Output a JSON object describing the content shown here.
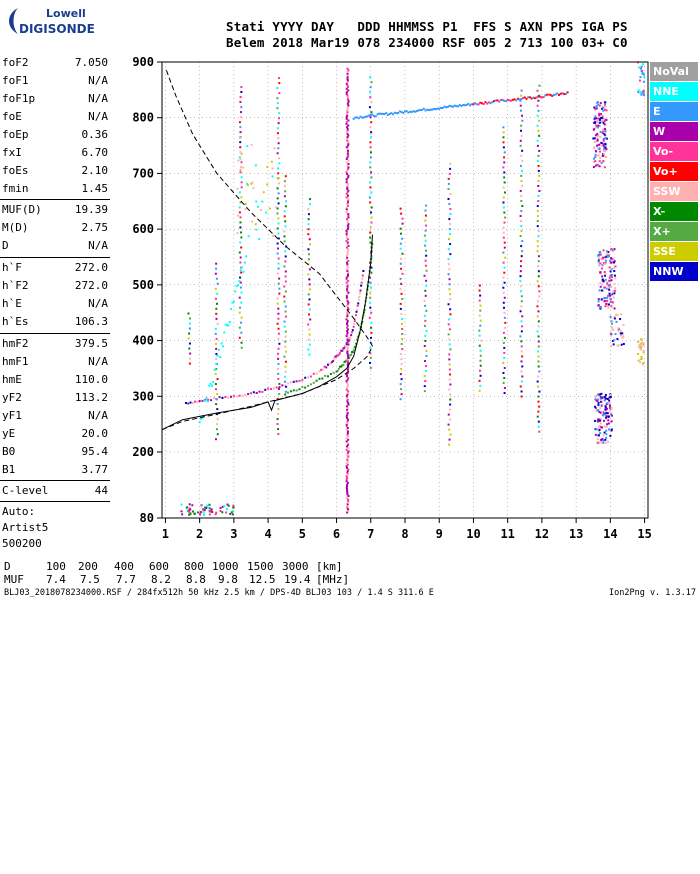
{
  "logo": {
    "top": "Lowell",
    "bottom": "DIGISONDE"
  },
  "header": {
    "line1": "Stati YYYY DAY   DDD HHMMSS P1  FFS S AXN PPS IGA PS",
    "line2": "Belem 2018 Mar19 078 234000 RSF 005 2 713 100 03+ C0"
  },
  "params": [
    {
      "name": "foF2",
      "value": "7.050"
    },
    {
      "name": "foF1",
      "value": "N/A"
    },
    {
      "name": "foF1p",
      "value": "N/A"
    },
    {
      "name": "foE",
      "value": "N/A"
    },
    {
      "name": "foEp",
      "value": "0.36"
    },
    {
      "name": "fxI",
      "value": "6.70"
    },
    {
      "name": "foEs",
      "value": "2.10"
    },
    {
      "name": "fmin",
      "value": "1.45"
    },
    {
      "name": "MUF(D)",
      "value": "19.39"
    },
    {
      "name": "M(D)",
      "value": "2.75"
    },
    {
      "name": "D",
      "value": "N/A"
    },
    {
      "name": "h`F",
      "value": "272.0"
    },
    {
      "name": "h`F2",
      "value": "272.0"
    },
    {
      "name": "h`E",
      "value": "N/A"
    },
    {
      "name": "h`Es",
      "value": "106.3"
    },
    {
      "name": "hmF2",
      "value": "379.5"
    },
    {
      "name": "hmF1",
      "value": "N/A"
    },
    {
      "name": "hmE",
      "value": "110.0"
    },
    {
      "name": "yF2",
      "value": "113.2"
    },
    {
      "name": "yF1",
      "value": "N/A"
    },
    {
      "name": "yE",
      "value": "20.0"
    },
    {
      "name": "B0",
      "value": "95.4"
    },
    {
      "name": "B1",
      "value": "3.77"
    },
    {
      "name": "C-level",
      "value": "44"
    }
  ],
  "auto": {
    "label": "Auto:",
    "artist": "Artist5",
    "code": "500200"
  },
  "legend": [
    {
      "label": "NoVal",
      "color": "#a0a0a0"
    },
    {
      "label": "NNE",
      "color": "#00ffff"
    },
    {
      "label": "E",
      "color": "#3399ff"
    },
    {
      "label": "W",
      "color": "#aa00aa"
    },
    {
      "label": "Vo-",
      "color": "#ff3399"
    },
    {
      "label": "Vo+",
      "color": "#ff0000"
    },
    {
      "label": "SSW",
      "color": "#ffb0b0"
    },
    {
      "label": "X-",
      "color": "#008800"
    },
    {
      "label": "X+",
      "color": "#55aa44"
    },
    {
      "label": "SSE",
      "color": "#cccc00"
    },
    {
      "label": "NNW",
      "color": "#0000cc"
    }
  ],
  "muf_table": {
    "d_label": "D",
    "d_values": [
      "100",
      "200",
      "400",
      "600",
      "800",
      "1000",
      "1500",
      "3000"
    ],
    "d_unit": "[km]",
    "muf_label": "MUF",
    "muf_values": [
      "7.4",
      "7.5",
      "7.7",
      "8.2",
      "8.8",
      "9.8",
      "12.5",
      "19.4"
    ],
    "muf_unit": "[MHz]"
  },
  "footer": {
    "left": "BLJ03_2018078234000.RSF / 284fx512h 50 kHz 2.5 km / DPS-4D BLJ03 103 / 1.4 S 311.6 E",
    "right": "Ion2Png v. 1.3.17"
  },
  "chart_data": {
    "type": "scatter",
    "x_ticks": [
      "1",
      "2",
      "3",
      "4",
      "5",
      "6",
      "7",
      "8",
      "9",
      "10",
      "11",
      "12",
      "13",
      "14",
      "15"
    ],
    "y_ticks": [
      "80",
      "200",
      "300",
      "400",
      "500",
      "600",
      "700",
      "800",
      "900"
    ],
    "xlim": [
      0.9,
      15.1
    ],
    "ylim_note": "virtual height, km; axis non-linear at the bottom (80 to 200)",
    "ylim": [
      80,
      900
    ],
    "grid": true,
    "legend_position": "right",
    "o_trace": [
      [
        1.6,
        288
      ],
      [
        2.0,
        291
      ],
      [
        2.5,
        296
      ],
      [
        3.0,
        300
      ],
      [
        3.5,
        305
      ],
      [
        4.0,
        312
      ],
      [
        4.5,
        320
      ],
      [
        5.0,
        330
      ],
      [
        5.5,
        345
      ],
      [
        5.8,
        358
      ],
      [
        6.0,
        372
      ],
      [
        6.2,
        385
      ],
      [
        6.35,
        398
      ],
      [
        6.5,
        425
      ],
      [
        6.6,
        455
      ],
      [
        6.7,
        490
      ],
      [
        6.8,
        530
      ]
    ],
    "x_trace": [
      [
        4.5,
        305
      ],
      [
        5.0,
        315
      ],
      [
        5.5,
        330
      ],
      [
        6.0,
        345
      ],
      [
        6.2,
        358
      ],
      [
        6.4,
        372
      ],
      [
        6.55,
        390
      ],
      [
        6.7,
        420
      ],
      [
        6.8,
        450
      ],
      [
        6.9,
        490
      ],
      [
        7.0,
        540
      ],
      [
        7.05,
        580
      ]
    ],
    "profile_curve": [
      [
        0.9,
        240
      ],
      [
        1.5,
        255
      ],
      [
        2.5,
        268
      ],
      [
        3.5,
        282
      ],
      [
        4.0,
        290
      ],
      [
        5.0,
        305
      ],
      [
        6.0,
        330
      ],
      [
        6.5,
        350
      ],
      [
        6.9,
        372
      ],
      [
        7.05,
        390
      ],
      [
        6.9,
        405
      ],
      [
        6.5,
        440
      ],
      [
        6.0,
        480
      ],
      [
        5.5,
        520
      ],
      [
        4.5,
        570
      ],
      [
        3.5,
        630
      ],
      [
        2.5,
        700
      ],
      [
        1.8,
        770
      ],
      [
        1.3,
        840
      ],
      [
        1.0,
        890
      ]
    ],
    "fit_curve": [
      [
        0.9,
        240
      ],
      [
        1.5,
        258
      ],
      [
        2.5,
        270
      ],
      [
        3.5,
        280
      ],
      [
        4.0,
        290
      ],
      [
        4.1,
        275
      ],
      [
        4.2,
        292
      ],
      [
        5.0,
        305
      ],
      [
        5.5,
        318
      ],
      [
        6.0,
        335
      ],
      [
        6.3,
        350
      ],
      [
        6.5,
        372
      ],
      [
        6.7,
        420
      ],
      [
        6.85,
        470
      ],
      [
        7.0,
        540
      ],
      [
        7.05,
        590
      ]
    ]
  }
}
